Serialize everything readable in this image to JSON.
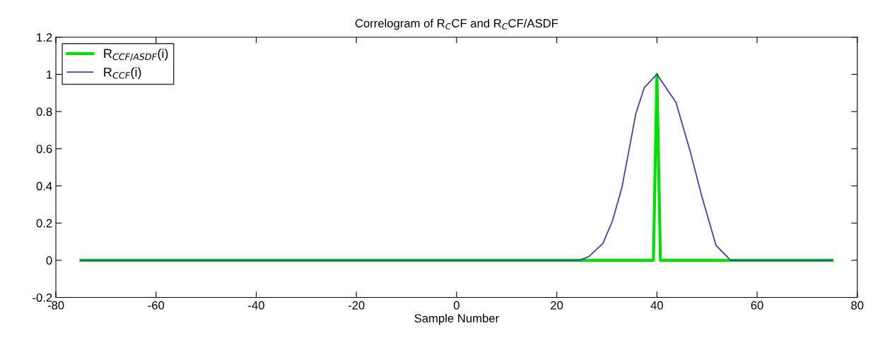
{
  "chart_data": {
    "type": "line",
    "title": "Correlogram of R$_{C}$CF and R$_{C}$CF/ASDF",
    "xlabel": "Sample Number",
    "series": [
      {
        "name": "R$_{CCF/ASDF}$(i)",
        "color": "#00e000",
        "x": [
          -75,
          39.3,
          40,
          40.7,
          75
        ],
        "values": [
          0,
          0,
          1,
          0,
          0
        ]
      },
      {
        "name": "R$_{CCF}$(i)",
        "color": "#4040b0",
        "x": [
          -75,
          24.5,
          26.4,
          29.2,
          31.1,
          33.0,
          34.4,
          35.8,
          37.5,
          40,
          43.8,
          46.6,
          49.0,
          51.8,
          54.7,
          75
        ],
        "values": [
          0,
          0,
          0.02,
          0.09,
          0.21,
          0.39,
          0.59,
          0.79,
          0.93,
          1,
          0.85,
          0.59,
          0.34,
          0.08,
          0,
          0
        ]
      }
    ],
    "xlim": [
      -80,
      80
    ],
    "xticks": [
      -80,
      -60,
      -40,
      -20,
      0,
      20,
      40,
      60,
      80
    ],
    "ylim": [
      -0.2,
      1.2
    ],
    "yticks": [
      -0.2,
      0,
      0.2,
      0.4,
      0.6,
      0.8,
      1,
      1.2
    ],
    "legend": "top left",
    "grid": false,
    "marker": "none",
    "line_style": "solid"
  }
}
